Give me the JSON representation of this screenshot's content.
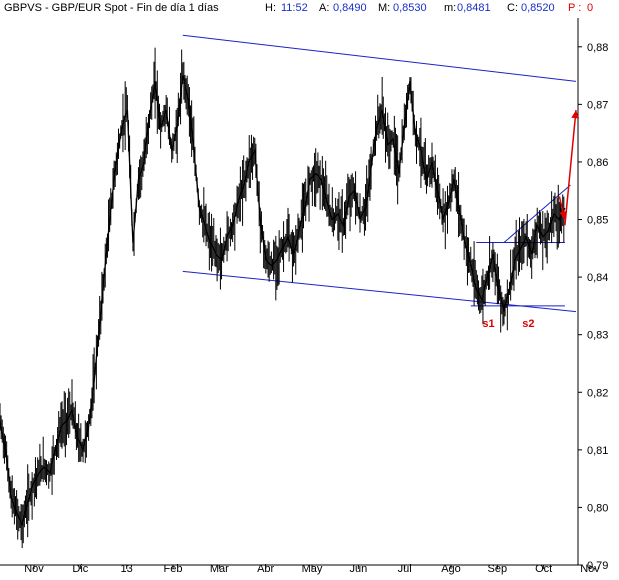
{
  "header": {
    "symbol": "GBPVS - GBP/EUR Spot - Fin de día 1 días",
    "h_label": "H:",
    "h_value": "11:52",
    "a_label": "A:",
    "a_value": "0,8490",
    "m_label": "M:",
    "m_value": "0,8530",
    "low_label": "m:",
    "low_value": "0,8481",
    "c_label": "C:",
    "c_value": "0,8520",
    "p_label": "P :",
    "p_value": "0"
  },
  "chart_data": {
    "type": "line",
    "title": "GBPVS - GBP/EUR Spot - Fin de día 1 días",
    "xlabel": "",
    "ylabel": "",
    "ylim": [
      0.79,
      0.885
    ],
    "y_ticks": [
      "0,88",
      "0,87",
      "0,86",
      "0,85",
      "0,84",
      "0,83",
      "0,82",
      "0,81",
      "0,80",
      "0,79"
    ],
    "y_tick_values": [
      0.88,
      0.87,
      0.86,
      0.85,
      0.84,
      0.83,
      0.82,
      0.81,
      0.8,
      0.79
    ],
    "x_ticks": [
      "Nov",
      "Dic",
      "13",
      "Feb",
      "Mar",
      "Abr",
      "May",
      "Jun",
      "Jul",
      "Ago",
      "Sep",
      "Oct",
      "Nov"
    ],
    "grid": false,
    "colors": {
      "price": "#000000",
      "channel": "#1a23c8",
      "annotation": "#e00000"
    },
    "x_unit": "trading days from start of plotted range",
    "series": [
      {
        "values": [
          [
            0,
            0.815
          ],
          [
            5,
            0.81
          ],
          [
            10,
            0.802
          ],
          [
            15,
            0.799
          ],
          [
            20,
            0.797
          ],
          [
            25,
            0.801
          ],
          [
            30,
            0.804
          ],
          [
            35,
            0.806
          ],
          [
            40,
            0.807
          ],
          [
            45,
            0.806
          ],
          [
            50,
            0.81
          ],
          [
            55,
            0.814
          ],
          [
            60,
            0.815
          ],
          [
            65,
            0.817
          ],
          [
            70,
            0.812
          ],
          [
            75,
            0.81
          ],
          [
            80,
            0.814
          ],
          [
            85,
            0.822
          ],
          [
            90,
            0.832
          ],
          [
            95,
            0.842
          ],
          [
            100,
            0.852
          ],
          [
            105,
            0.86
          ],
          [
            110,
            0.866
          ],
          [
            115,
            0.869
          ],
          [
            120,
            0.846
          ],
          [
            125,
            0.857
          ],
          [
            130,
            0.86
          ],
          [
            135,
            0.868
          ],
          [
            140,
            0.874
          ],
          [
            145,
            0.866
          ],
          [
            150,
            0.869
          ],
          [
            155,
            0.862
          ],
          [
            160,
            0.866
          ],
          [
            165,
            0.875
          ],
          [
            170,
            0.871
          ],
          [
            175,
            0.862
          ],
          [
            180,
            0.852
          ],
          [
            185,
            0.849
          ],
          [
            190,
            0.846
          ],
          [
            195,
            0.844
          ],
          [
            200,
            0.843
          ],
          [
            205,
            0.847
          ],
          [
            210,
            0.849
          ],
          [
            215,
            0.853
          ],
          [
            220,
            0.856
          ],
          [
            225,
            0.86
          ],
          [
            230,
            0.862
          ],
          [
            235,
            0.85
          ],
          [
            240,
            0.843
          ],
          [
            245,
            0.842
          ],
          [
            250,
            0.843
          ],
          [
            255,
            0.845
          ],
          [
            260,
            0.847
          ],
          [
            265,
            0.844
          ],
          [
            270,
            0.848
          ],
          [
            275,
            0.852
          ],
          [
            280,
            0.857
          ],
          [
            285,
            0.858
          ],
          [
            290,
            0.857
          ],
          [
            295,
            0.853
          ],
          [
            300,
            0.85
          ],
          [
            305,
            0.851
          ],
          [
            310,
            0.849
          ],
          [
            315,
            0.854
          ],
          [
            320,
            0.855
          ],
          [
            325,
            0.85
          ],
          [
            330,
            0.852
          ],
          [
            335,
            0.859
          ],
          [
            340,
            0.866
          ],
          [
            345,
            0.869
          ],
          [
            350,
            0.863
          ],
          [
            355,
            0.864
          ],
          [
            360,
            0.858
          ],
          [
            365,
            0.866
          ],
          [
            370,
            0.874
          ],
          [
            375,
            0.865
          ],
          [
            380,
            0.862
          ],
          [
            385,
            0.857
          ],
          [
            390,
            0.86
          ],
          [
            395,
            0.855
          ],
          [
            400,
            0.85
          ],
          [
            405,
            0.853
          ],
          [
            410,
            0.857
          ],
          [
            415,
            0.851
          ],
          [
            420,
            0.846
          ],
          [
            425,
            0.842
          ],
          [
            430,
            0.838
          ],
          [
            435,
            0.836
          ],
          [
            440,
            0.84
          ],
          [
            445,
            0.844
          ],
          [
            450,
            0.838
          ],
          [
            455,
            0.834
          ],
          [
            460,
            0.838
          ],
          [
            465,
            0.843
          ],
          [
            470,
            0.845
          ],
          [
            475,
            0.847
          ],
          [
            480,
            0.844
          ],
          [
            485,
            0.849
          ],
          [
            490,
            0.847
          ],
          [
            495,
            0.848
          ],
          [
            500,
            0.851
          ],
          [
            505,
            0.85
          ],
          [
            510,
            0.852
          ]
        ]
      }
    ],
    "annotations": [
      {
        "text": "s1",
        "x": 441,
        "y": 0.832
      },
      {
        "text": "s2",
        "x": 477,
        "y": 0.832
      }
    ],
    "channel_lines": [
      {
        "from": [
          165,
          0.882
        ],
        "to": [
          520,
          0.874
        ]
      },
      {
        "from": [
          165,
          0.841
        ],
        "to": [
          520,
          0.834
        ]
      },
      {
        "from": [
          430,
          0.846
        ],
        "to": [
          510,
          0.846
        ]
      },
      {
        "from": [
          425,
          0.835
        ],
        "to": [
          510,
          0.835
        ]
      },
      {
        "from": [
          455,
          0.846
        ],
        "to": [
          515,
          0.856
        ]
      }
    ],
    "arrows": [
      {
        "from": [
          510,
          0.849
        ],
        "to": [
          520,
          0.869
        ]
      },
      {
        "from": [
          505,
          0.854
        ],
        "to": [
          510,
          0.85
        ]
      }
    ]
  }
}
